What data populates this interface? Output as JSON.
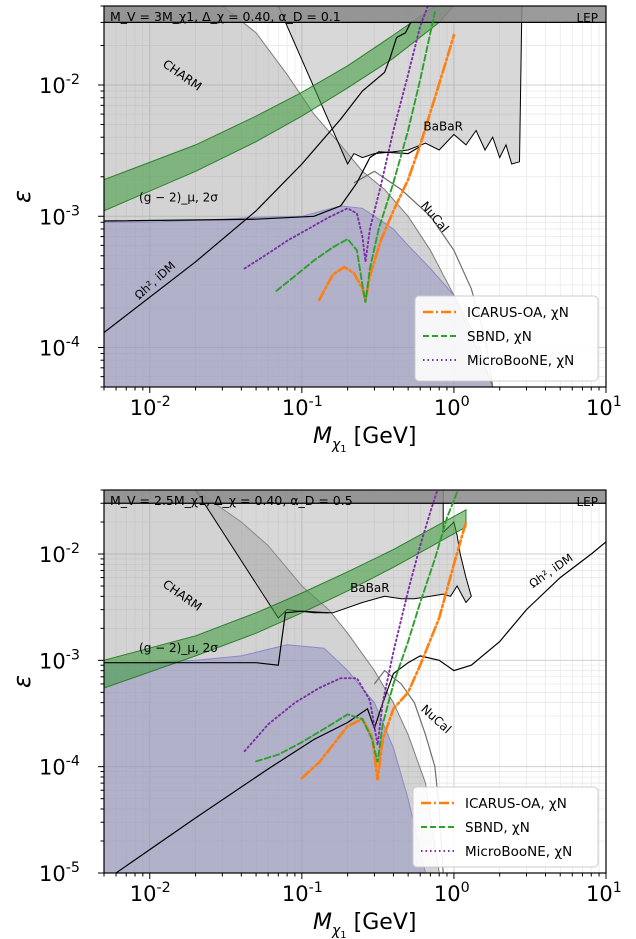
{
  "chart_data": [
    {
      "type": "line",
      "xscale": "log",
      "yscale": "log",
      "xlim": [
        0.005,
        10
      ],
      "ylim": [
        5e-05,
        0.04
      ],
      "xlabel": "M_χ1  [GeV]",
      "ylabel": "ε",
      "xtick_labels": [
        "10^-2",
        "10^-1",
        "10^0",
        "10^1"
      ],
      "xtick_values": [
        0.01,
        0.1,
        1,
        10
      ],
      "ytick_labels": [
        "10^-4",
        "10^-3",
        "10^-2"
      ],
      "ytick_values": [
        0.0001,
        0.001,
        0.01
      ],
      "grid": true,
      "legend_position": "bottom-right",
      "banner": "M_V = 3M_χ1, Δ_χ = 0.40, α_D = 0.1",
      "region_labels": {
        "lep": "LEP",
        "charm": "CHARM",
        "babar": "BaBaR",
        "nucal": "NuCal",
        "g2": "(g − 2)_μ, 2σ",
        "relic": "Ωh², iDM"
      },
      "colors": {
        "excluded": "#9e9e9e",
        "relic_fill": "#8f8fe0",
        "g2_band": "#3a9a3a",
        "icarus": "#ff7f0e",
        "sbnd": "#2ca02c",
        "microboone": "#7b2fa6"
      },
      "series": [
        {
          "name": "ICARUS-OA, χN",
          "style": "dashdot",
          "color": "#ff7f0e",
          "x": [
            0.13,
            0.16,
            0.19,
            0.22,
            0.25,
            0.262,
            0.28,
            0.33,
            0.4,
            0.5,
            0.6,
            0.75,
            0.9,
            1.0
          ],
          "y": [
            0.00023,
            0.00036,
            0.00041,
            0.00037,
            0.00028,
            0.00023,
            0.00035,
            0.00065,
            0.0011,
            0.0019,
            0.0035,
            0.008,
            0.016,
            0.024
          ]
        },
        {
          "name": "SBND,  χN",
          "style": "dashed",
          "color": "#2ca02c",
          "x": [
            0.068,
            0.09,
            0.12,
            0.16,
            0.2,
            0.23,
            0.25,
            0.262,
            0.28,
            0.32,
            0.4,
            0.5,
            0.6,
            0.75
          ],
          "y": [
            0.00027,
            0.00035,
            0.00046,
            0.00058,
            0.00067,
            0.00055,
            0.0003,
            0.00022,
            0.0004,
            0.0008,
            0.0018,
            0.0045,
            0.011,
            0.036
          ]
        },
        {
          "name": "MicroBooNE, χN",
          "style": "dotted",
          "color": "#7b2fa6",
          "x": [
            0.042,
            0.06,
            0.08,
            0.11,
            0.15,
            0.2,
            0.23,
            0.25,
            0.262,
            0.28,
            0.33,
            0.4,
            0.5,
            0.6,
            0.7
          ],
          "y": [
            0.0004,
            0.00052,
            0.00065,
            0.0008,
            0.00098,
            0.00115,
            0.00105,
            0.0007,
            0.00045,
            0.0008,
            0.0017,
            0.0045,
            0.012,
            0.028,
            0.045
          ]
        }
      ]
    },
    {
      "type": "line",
      "xscale": "log",
      "yscale": "log",
      "xlim": [
        0.005,
        10
      ],
      "ylim": [
        1e-05,
        0.04
      ],
      "xlabel": "M_χ1  [GeV]",
      "ylabel": "ε",
      "xtick_labels": [
        "10^-2",
        "10^-1",
        "10^0",
        "10^1"
      ],
      "xtick_values": [
        0.01,
        0.1,
        1,
        10
      ],
      "ytick_labels": [
        "10^-5",
        "10^-4",
        "10^-3",
        "10^-2"
      ],
      "ytick_values": [
        1e-05,
        0.0001,
        0.001,
        0.01
      ],
      "grid": true,
      "legend_position": "bottom-right",
      "banner": "M_V = 2.5M_χ1, Δ_χ = 0.40, α_D = 0.5",
      "region_labels": {
        "lep": "LEP",
        "charm": "CHARM",
        "babar": "BaBaR",
        "nucal": "NuCal",
        "g2": "(g − 2)_μ, 2σ",
        "relic": "Ωh², iDM"
      },
      "colors": {
        "excluded": "#9e9e9e",
        "relic_fill": "#8f8fe0",
        "g2_band": "#3a9a3a",
        "icarus": "#ff7f0e",
        "sbnd": "#2ca02c",
        "microboone": "#7b2fa6"
      },
      "series": [
        {
          "name": "ICARUS-OA,  χN",
          "style": "dashdot",
          "color": "#ff7f0e",
          "x": [
            0.1,
            0.13,
            0.16,
            0.2,
            0.25,
            0.29,
            0.315,
            0.34,
            0.4,
            0.5,
            0.6,
            0.8,
            1.0,
            1.2
          ],
          "y": [
            7.8e-05,
            0.00011,
            0.00016,
            0.00024,
            0.00028,
            0.00019,
            7.5e-05,
            0.00018,
            0.00035,
            0.0005,
            0.0009,
            0.0025,
            0.008,
            0.02
          ]
        },
        {
          "name": "SBND,  χN",
          "style": "dashed",
          "color": "#2ca02c",
          "x": [
            0.05,
            0.07,
            0.1,
            0.15,
            0.2,
            0.25,
            0.29,
            0.315,
            0.34,
            0.4,
            0.5,
            0.6,
            0.75,
            0.9,
            1.1
          ],
          "y": [
            0.000112,
            0.00013,
            0.00017,
            0.00024,
            0.00031,
            0.00028,
            0.00018,
            0.00011,
            0.00025,
            0.0006,
            0.0015,
            0.0035,
            0.009,
            0.022,
            0.045
          ]
        },
        {
          "name": "MicroBooNE,  χN",
          "style": "dotted",
          "color": "#7b2fa6",
          "x": [
            0.042,
            0.06,
            0.09,
            0.13,
            0.18,
            0.23,
            0.28,
            0.315,
            0.34,
            0.4,
            0.5,
            0.6,
            0.7,
            0.8
          ],
          "y": [
            0.00014,
            0.00025,
            0.0004,
            0.00055,
            0.00068,
            0.00068,
            0.00042,
            0.00016,
            0.0004,
            0.0012,
            0.0045,
            0.012,
            0.025,
            0.045
          ]
        }
      ]
    }
  ]
}
